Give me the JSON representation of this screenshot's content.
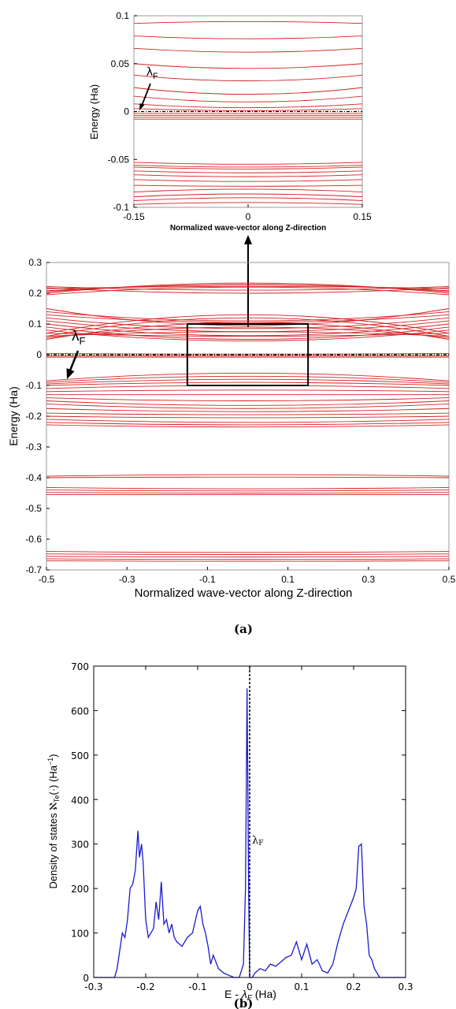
{
  "colors": {
    "band": "#d42020",
    "dos": "#1a1ad0",
    "fermi": "#000000"
  },
  "chart_data": [
    {
      "id": "inset",
      "type": "line",
      "xlim": [
        -0.15,
        0.15
      ],
      "ylim": [
        -0.1,
        0.1
      ],
      "xticks": [
        "-0.15",
        "0",
        "0.15"
      ],
      "xtick_values": [
        -0.15,
        0,
        0.15
      ],
      "yticks": [
        "0.1",
        "0.05",
        "0",
        "-0.05",
        "-0.1"
      ],
      "ytick_values": [
        0.1,
        0.05,
        0,
        -0.05,
        -0.1
      ],
      "xlabel": "Normalized wave-vector along Z-direction",
      "ylabel": "Energy (Ha)",
      "fermi_level": 0,
      "fermi_label": "λF",
      "bands": [
        [
          0.092,
          0.094
        ],
        [
          0.079,
          0.076
        ],
        [
          0.066,
          0.062
        ],
        [
          0.05,
          0.045
        ],
        [
          0.038,
          0.032
        ],
        [
          0.025,
          0.018
        ],
        [
          0.016,
          0.01
        ],
        [
          0.008,
          0.004
        ],
        [
          0.003,
          0.001
        ],
        [
          -0.002,
          -0.002
        ],
        [
          -0.004,
          -0.004
        ],
        [
          -0.006,
          -0.006
        ],
        [
          -0.008,
          -0.008
        ],
        [
          -0.053,
          -0.055
        ],
        [
          -0.056,
          -0.058
        ],
        [
          -0.058,
          -0.06
        ],
        [
          -0.062,
          -0.064
        ],
        [
          -0.066,
          -0.068
        ],
        [
          -0.071,
          -0.073
        ],
        [
          -0.077,
          -0.078
        ],
        [
          -0.084,
          -0.081
        ],
        [
          -0.089,
          -0.086
        ],
        [
          -0.093,
          -0.09
        ],
        [
          -0.097,
          -0.095
        ]
      ],
      "grid": false
    },
    {
      "id": "main",
      "type": "line",
      "xlim": [
        -0.5,
        0.5
      ],
      "ylim": [
        -0.7,
        0.3
      ],
      "xticks": [
        "-0.5",
        "-0.3",
        "-0.1",
        "0.1",
        "0.3",
        "0.5"
      ],
      "xtick_values": [
        -0.5,
        -0.3,
        -0.1,
        0.1,
        0.3,
        0.5
      ],
      "yticks": [
        "0.3",
        "0.2",
        "0.1",
        "0",
        "-0.1",
        "-0.2",
        "-0.3",
        "-0.4",
        "-0.5",
        "-0.6",
        "-0.7"
      ],
      "ytick_values": [
        0.3,
        0.2,
        0.1,
        0,
        -0.1,
        -0.2,
        -0.3,
        -0.4,
        -0.5,
        -0.6,
        -0.7
      ],
      "xlabel": "Normalized wave-vector along Z-direction",
      "ylabel": "Energy (Ha)",
      "fermi_level": 0,
      "fermi_label": "λF",
      "inset_box": {
        "x": [
          -0.15,
          0.15
        ],
        "y": [
          -0.1,
          0.1
        ]
      },
      "bands": [
        [
          0.215,
          0.222
        ],
        [
          0.208,
          0.227
        ],
        [
          0.2,
          0.233
        ],
        [
          0.222,
          0.21
        ],
        [
          0.218,
          0.2
        ],
        [
          0.205,
          0.228
        ],
        [
          0.195,
          0.22
        ],
        [
          0.15,
          0.095
        ],
        [
          0.14,
          0.11
        ],
        [
          0.13,
          0.105
        ],
        [
          0.12,
          0.085
        ],
        [
          0.11,
          0.075
        ],
        [
          0.1,
          0.062
        ],
        [
          0.09,
          0.05
        ],
        [
          0.08,
          0.045
        ],
        [
          0.07,
          0.06
        ],
        [
          0.06,
          0.075
        ],
        [
          0.055,
          0.09
        ],
        [
          0.05,
          0.105
        ],
        [
          0.06,
          0.12
        ],
        [
          0.07,
          0.13
        ],
        [
          0.004,
          0.002
        ],
        [
          -0.004,
          -0.004
        ],
        [
          -0.008,
          -0.008
        ],
        [
          -0.085,
          -0.06
        ],
        [
          -0.09,
          -0.07
        ],
        [
          -0.095,
          -0.08
        ],
        [
          -0.1,
          -0.09
        ],
        [
          -0.11,
          -0.1
        ],
        [
          -0.12,
          -0.115
        ],
        [
          -0.13,
          -0.13
        ],
        [
          -0.14,
          -0.15
        ],
        [
          -0.15,
          -0.165
        ],
        [
          -0.16,
          -0.175
        ],
        [
          -0.175,
          -0.185
        ],
        [
          -0.19,
          -0.195
        ],
        [
          -0.2,
          -0.205
        ],
        [
          -0.21,
          -0.22
        ],
        [
          -0.22,
          -0.228
        ],
        [
          -0.228,
          -0.235
        ],
        [
          -0.395,
          -0.39
        ],
        [
          -0.4,
          -0.398
        ],
        [
          -0.432,
          -0.436
        ],
        [
          -0.44,
          -0.443
        ],
        [
          -0.448,
          -0.45
        ],
        [
          -0.455,
          -0.455
        ],
        [
          -0.64,
          -0.643
        ],
        [
          -0.648,
          -0.65
        ],
        [
          -0.656,
          -0.658
        ],
        [
          -0.664,
          -0.666
        ],
        [
          -0.67,
          -0.672
        ]
      ],
      "grid": false
    },
    {
      "id": "dos",
      "type": "line",
      "xlim": [
        -0.3,
        0.3
      ],
      "ylim": [
        0,
        700
      ],
      "xticks": [
        "-0.3",
        "-0.2",
        "-0.1",
        "0",
        "0.1",
        "0.2",
        "0.3"
      ],
      "xtick_values": [
        -0.3,
        -0.2,
        -0.1,
        0,
        0.1,
        0.2,
        0.3
      ],
      "yticks": [
        "700",
        "600",
        "500",
        "400",
        "300",
        "200",
        "100",
        "0"
      ],
      "ytick_values": [
        700,
        600,
        500,
        400,
        300,
        200,
        100,
        0
      ],
      "xlabel": "E - λF (Ha)",
      "ylabel": "Density of states ℵTe(·) (Ha⁻¹)",
      "fermi_label": "λF",
      "x": [
        -0.3,
        -0.26,
        -0.255,
        -0.25,
        -0.245,
        -0.24,
        -0.235,
        -0.23,
        -0.225,
        -0.22,
        -0.215,
        -0.212,
        -0.208,
        -0.205,
        -0.2,
        -0.195,
        -0.19,
        -0.185,
        -0.18,
        -0.175,
        -0.17,
        -0.165,
        -0.16,
        -0.155,
        -0.15,
        -0.145,
        -0.14,
        -0.13,
        -0.12,
        -0.11,
        -0.1,
        -0.095,
        -0.09,
        -0.085,
        -0.08,
        -0.075,
        -0.07,
        -0.06,
        -0.05,
        -0.04,
        -0.03,
        -0.02,
        -0.012,
        -0.008,
        -0.005,
        -0.002,
        0,
        0.005,
        0.01,
        0.02,
        0.03,
        0.04,
        0.05,
        0.06,
        0.07,
        0.08,
        0.09,
        0.1,
        0.11,
        0.12,
        0.13,
        0.14,
        0.15,
        0.16,
        0.17,
        0.18,
        0.19,
        0.2,
        0.205,
        0.21,
        0.215,
        0.22,
        0.225,
        0.23,
        0.235,
        0.24,
        0.25,
        0.3
      ],
      "values": [
        0,
        0,
        20,
        60,
        100,
        90,
        130,
        200,
        210,
        240,
        330,
        270,
        300,
        260,
        130,
        90,
        100,
        110,
        170,
        130,
        215,
        120,
        130,
        100,
        120,
        90,
        80,
        70,
        90,
        100,
        150,
        160,
        120,
        100,
        70,
        30,
        50,
        20,
        10,
        5,
        0,
        0,
        30,
        200,
        650,
        200,
        0,
        0,
        10,
        20,
        15,
        30,
        25,
        35,
        45,
        50,
        80,
        40,
        75,
        30,
        40,
        15,
        10,
        30,
        80,
        120,
        150,
        180,
        200,
        295,
        300,
        160,
        120,
        50,
        40,
        20,
        0,
        0
      ],
      "series": [
        {
          "name": ""
        }
      ],
      "grid": false
    }
  ],
  "captions": {
    "a": "(a)",
    "b": "(b)"
  },
  "labels": {
    "lambda": "λ",
    "F": "F",
    "dos_ylabel_prefix": "Density of states ",
    "aleph": "ℵ",
    "Te": "Te",
    "dos_ylabel_suffix": "(·) (Ha",
    "minus1": "−1",
    "close_paren": ")",
    "e_minus": "E - ",
    "lambdaF_italic": "λ",
    "F_italic": "F",
    "ha": " (Ha)"
  }
}
